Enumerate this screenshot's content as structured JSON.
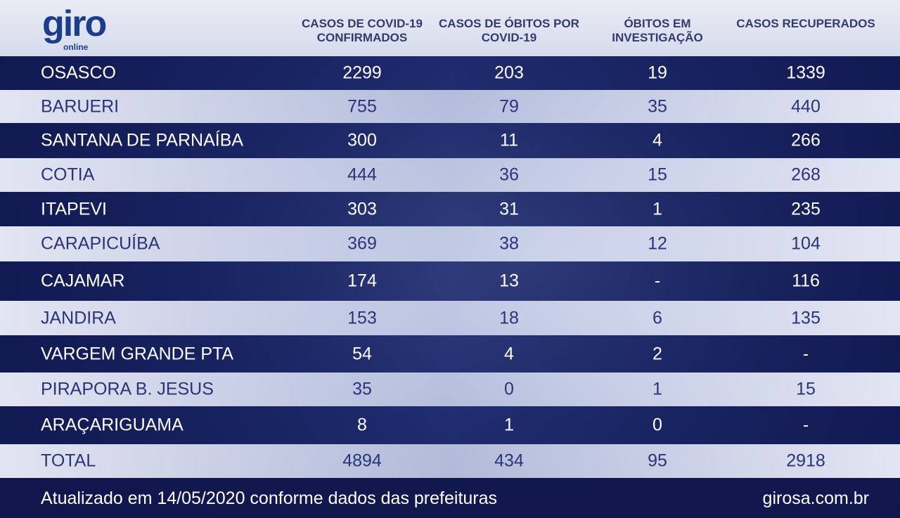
{
  "logo": {
    "name": "giro",
    "sub": "online"
  },
  "table": {
    "headers": [
      "CASOS DE COVID-19 CONFIRMADOS",
      "CASOS DE ÓBITOS POR COVID-19",
      "ÓBITOS EM INVESTIGAÇÃO",
      "CASOS RECUPERADOS"
    ],
    "rows": [
      [
        "OSASCO",
        2299,
        203,
        19,
        1339
      ],
      [
        "BARUERI",
        755,
        79,
        35,
        440
      ],
      [
        "SANTANA DE PARNAÍBA",
        300,
        11,
        4,
        266
      ],
      [
        "COTIA",
        444,
        36,
        15,
        268
      ],
      [
        "ITAPEVI",
        303,
        31,
        1,
        235
      ],
      [
        "CARAPICUÍBA",
        369,
        38,
        12,
        104
      ],
      [
        "CAJAMAR",
        174,
        13,
        "-",
        116
      ],
      [
        "JANDIRA",
        153,
        18,
        6,
        135
      ],
      [
        "VARGEM GRANDE PTA",
        54,
        4,
        2,
        "-"
      ],
      [
        "PIRAPORA B. JESUS",
        35,
        0,
        1,
        15
      ],
      [
        "ARAÇARIGUAMA",
        8,
        1,
        0,
        "-"
      ]
    ],
    "total": [
      "TOTAL",
      4894,
      434,
      95,
      2918
    ]
  },
  "footer": {
    "note": "Atualizado em 14/05/2020 conforme dados das prefeituras",
    "site": "girosa.com.br"
  }
}
